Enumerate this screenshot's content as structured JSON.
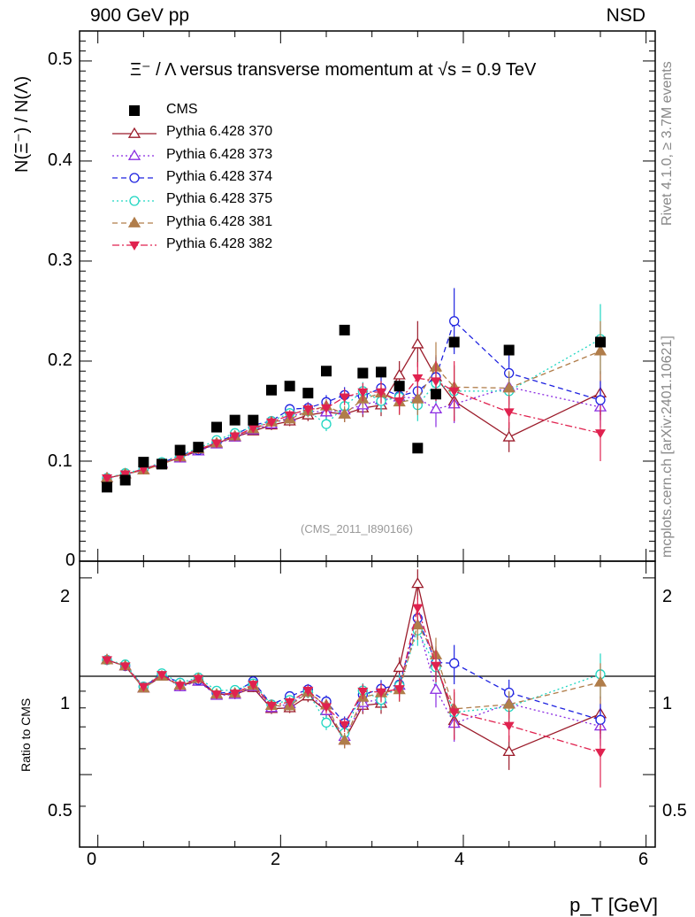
{
  "header": {
    "left": "900 GeV pp",
    "right": "NSD"
  },
  "side_notes": {
    "rivet": "Rivet 4.1.0, ≥ 3.7M events",
    "source": "mcplots.cern.ch [arXiv:2401.10621]"
  },
  "watermark": "(CMS_2011_I890166)",
  "colors": {
    "cms": "#000000",
    "s370": "#9b1b2a",
    "s373": "#8a2be2",
    "s374": "#1e22e0",
    "s375": "#1fd6c2",
    "s381": "#b07d4a",
    "s382": "#e0224f"
  },
  "chart_data": {
    "type": "scatter",
    "title": "Ξ⁻ / Λ versus transverse momentum at √s = 0.9 TeV",
    "xlabel": "p_T [GeV]",
    "ylabel": "N(Ξ⁻) / N(Λ)",
    "ratio_ylabel": "Ratio to CMS",
    "xlim": [
      -0.2,
      6.1
    ],
    "ylim": [
      0,
      0.53
    ],
    "ratio_ylim": [
      0.3,
      2.25
    ],
    "xticks": [
      "0",
      "2",
      "4",
      "6"
    ],
    "yticks": [
      "0.1",
      "0.2",
      "0.3",
      "0.4",
      "0.5"
    ],
    "ratio_yticks": [
      "0.5",
      "1",
      "2"
    ],
    "x": [
      0.1,
      0.3,
      0.5,
      0.7,
      0.9,
      1.1,
      1.3,
      1.5,
      1.7,
      1.9,
      2.1,
      2.3,
      2.5,
      2.7,
      2.9,
      3.1,
      3.3,
      3.5,
      3.7,
      3.9,
      4.5,
      5.5
    ],
    "data": {
      "name": "CMS",
      "values": [
        0.074,
        0.081,
        0.099,
        0.097,
        0.111,
        0.114,
        0.134,
        0.141,
        0.141,
        0.171,
        0.175,
        0.168,
        0.19,
        0.231,
        0.188,
        0.189,
        0.175,
        0.113,
        0.167,
        0.219,
        0.211,
        0.219
      ]
    },
    "series": [
      {
        "name": "Pythia 6.428 370",
        "marker": "triangle-open",
        "dash": "solid",
        "values": [
          0.083,
          0.087,
          0.091,
          0.097,
          0.104,
          0.11,
          0.118,
          0.124,
          0.13,
          0.136,
          0.14,
          0.146,
          0.149,
          0.147,
          0.153,
          0.156,
          0.186,
          0.217,
          0.184,
          0.16,
          0.124,
          0.168
        ],
        "errors": [
          0.002,
          0.002,
          0.002,
          0.002,
          0.003,
          0.003,
          0.003,
          0.004,
          0.004,
          0.005,
          0.005,
          0.006,
          0.007,
          0.008,
          0.009,
          0.011,
          0.014,
          0.023,
          0.022,
          0.02,
          0.015,
          0.022
        ]
      },
      {
        "name": "Pythia 6.428 373",
        "marker": "triangle-open",
        "dash": "dotted",
        "values": [
          0.083,
          0.087,
          0.091,
          0.098,
          0.103,
          0.11,
          0.117,
          0.124,
          0.131,
          0.137,
          0.144,
          0.15,
          0.149,
          0.151,
          0.156,
          0.161,
          0.164,
          0.163,
          0.152,
          0.157,
          0.174,
          0.154
        ],
        "errors": [
          0.002,
          0.002,
          0.002,
          0.002,
          0.003,
          0.003,
          0.003,
          0.004,
          0.004,
          0.005,
          0.005,
          0.006,
          0.007,
          0.008,
          0.009,
          0.011,
          0.013,
          0.016,
          0.018,
          0.019,
          0.017,
          0.02
        ]
      },
      {
        "name": "Pythia 6.428 374",
        "marker": "circle-open",
        "dash": "dashed",
        "values": [
          0.083,
          0.087,
          0.092,
          0.098,
          0.106,
          0.111,
          0.119,
          0.126,
          0.136,
          0.14,
          0.152,
          0.153,
          0.159,
          0.166,
          0.165,
          0.173,
          0.165,
          0.17,
          0.184,
          0.24,
          0.188,
          0.161
        ],
        "errors": [
          0.002,
          0.002,
          0.002,
          0.002,
          0.003,
          0.003,
          0.003,
          0.004,
          0.004,
          0.005,
          0.005,
          0.006,
          0.007,
          0.008,
          0.009,
          0.011,
          0.013,
          0.016,
          0.02,
          0.033,
          0.018,
          0.02
        ]
      },
      {
        "name": "Pythia 6.428 375",
        "marker": "circle-open",
        "dash": "dotted",
        "values": [
          0.083,
          0.088,
          0.092,
          0.099,
          0.106,
          0.113,
          0.121,
          0.128,
          0.134,
          0.14,
          0.148,
          0.15,
          0.137,
          0.155,
          0.17,
          0.16,
          0.164,
          0.156,
          0.178,
          0.17,
          0.17,
          0.222
        ],
        "errors": [
          0.002,
          0.002,
          0.002,
          0.002,
          0.003,
          0.003,
          0.003,
          0.004,
          0.004,
          0.005,
          0.005,
          0.006,
          0.007,
          0.008,
          0.009,
          0.011,
          0.013,
          0.016,
          0.02,
          0.025,
          0.018,
          0.035
        ]
      },
      {
        "name": "Pythia 6.428 381",
        "marker": "triangle-filled",
        "dash": "dashed",
        "values": [
          0.083,
          0.087,
          0.091,
          0.097,
          0.104,
          0.112,
          0.118,
          0.125,
          0.132,
          0.139,
          0.142,
          0.15,
          0.155,
          0.147,
          0.162,
          0.168,
          0.159,
          0.162,
          0.194,
          0.174,
          0.173,
          0.21
        ],
        "errors": [
          0.002,
          0.002,
          0.002,
          0.002,
          0.003,
          0.003,
          0.003,
          0.004,
          0.004,
          0.005,
          0.005,
          0.006,
          0.007,
          0.008,
          0.009,
          0.011,
          0.013,
          0.016,
          0.025,
          0.022,
          0.017,
          0.03
        ]
      },
      {
        "name": "Pythia 6.428 382",
        "marker": "triangle-down-filled",
        "dash": "dashdot",
        "values": [
          0.083,
          0.087,
          0.092,
          0.098,
          0.104,
          0.112,
          0.118,
          0.125,
          0.133,
          0.139,
          0.146,
          0.152,
          0.153,
          0.164,
          0.169,
          0.169,
          0.16,
          0.183,
          0.18,
          0.17,
          0.149,
          0.128
        ],
        "errors": [
          0.002,
          0.002,
          0.002,
          0.002,
          0.003,
          0.003,
          0.003,
          0.004,
          0.004,
          0.005,
          0.005,
          0.006,
          0.007,
          0.008,
          0.009,
          0.011,
          0.013,
          0.016,
          0.02,
          0.03,
          0.016,
          0.028
        ]
      }
    ]
  }
}
